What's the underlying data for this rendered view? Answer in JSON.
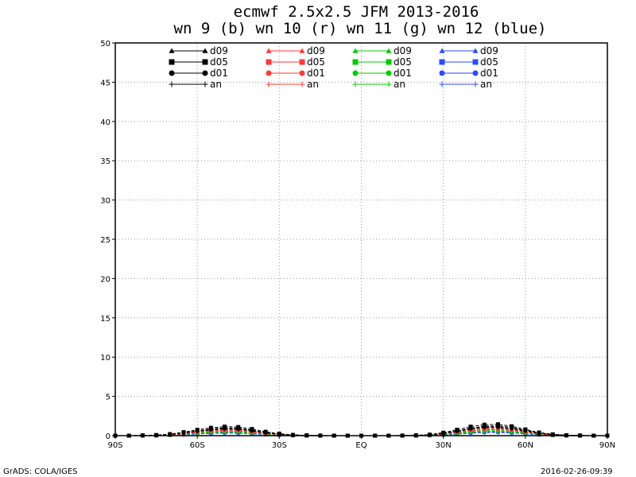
{
  "chart_data": {
    "type": "line",
    "title": "ecmwf 2.5x2.5 JFM 2013-2016",
    "subtitle": "wn 9 (b) wn 10 (r) wn 11 (g) wn 12 (blue)",
    "xlabel": "",
    "ylabel": "",
    "xlim": [
      -90,
      90
    ],
    "ylim": [
      0,
      50
    ],
    "grid": true,
    "legend_position": "top",
    "x_ticks": [
      {
        "value": -90,
        "label": "90S"
      },
      {
        "value": -60,
        "label": "60S"
      },
      {
        "value": -30,
        "label": "30S"
      },
      {
        "value": 0,
        "label": "EQ"
      },
      {
        "value": 30,
        "label": "30N"
      },
      {
        "value": 60,
        "label": "60N"
      },
      {
        "value": 90,
        "label": "90N"
      }
    ],
    "y_ticks": [
      0,
      5,
      10,
      15,
      20,
      25,
      30,
      35,
      40,
      45,
      50
    ],
    "x": [
      -90,
      -85,
      -80,
      -75,
      -70,
      -65,
      -60,
      -55,
      -50,
      -45,
      -40,
      -35,
      -30,
      -25,
      -20,
      -15,
      -10,
      -5,
      0,
      5,
      10,
      15,
      20,
      25,
      30,
      35,
      40,
      45,
      50,
      55,
      60,
      65,
      70,
      75,
      80,
      85,
      90
    ],
    "groups": [
      {
        "name": "wn 9",
        "color": "#000000",
        "series": [
          {
            "name": "d09",
            "marker": "triangle",
            "values": [
              0,
              0,
              0.02,
              0.05,
              0.15,
              0.35,
              0.6,
              0.85,
              1.0,
              0.95,
              0.7,
              0.4,
              0.2,
              0.08,
              0.03,
              0.01,
              0,
              0,
              0,
              0,
              0,
              0.01,
              0.03,
              0.1,
              0.3,
              0.6,
              0.95,
              1.2,
              1.25,
              1.05,
              0.7,
              0.35,
              0.15,
              0.05,
              0.02,
              0,
              0
            ]
          },
          {
            "name": "d05",
            "marker": "square",
            "values": [
              0,
              0,
              0.03,
              0.08,
              0.2,
              0.45,
              0.75,
              1.0,
              1.15,
              1.1,
              0.85,
              0.5,
              0.25,
              0.1,
              0.04,
              0.01,
              0,
              0,
              0,
              0,
              0,
              0.01,
              0.04,
              0.13,
              0.38,
              0.75,
              1.15,
              1.4,
              1.45,
              1.2,
              0.8,
              0.4,
              0.17,
              0.06,
              0.02,
              0,
              0
            ]
          },
          {
            "name": "d01",
            "marker": "circle",
            "values": [
              0,
              0,
              0.02,
              0.06,
              0.16,
              0.36,
              0.6,
              0.8,
              0.9,
              0.85,
              0.65,
              0.38,
              0.19,
              0.08,
              0.03,
              0.01,
              0,
              0,
              0,
              0,
              0,
              0.01,
              0.03,
              0.1,
              0.3,
              0.58,
              0.9,
              1.1,
              1.12,
              0.92,
              0.62,
              0.31,
              0.13,
              0.05,
              0.02,
              0,
              0
            ]
          },
          {
            "name": "an",
            "marker": "plus",
            "values": [
              0,
              0,
              0.02,
              0.05,
              0.14,
              0.32,
              0.55,
              0.74,
              0.84,
              0.8,
              0.6,
              0.35,
              0.18,
              0.07,
              0.03,
              0.01,
              0,
              0,
              0,
              0,
              0,
              0.01,
              0.03,
              0.09,
              0.28,
              0.54,
              0.84,
              1.02,
              1.04,
              0.86,
              0.58,
              0.29,
              0.12,
              0.04,
              0.01,
              0,
              0
            ]
          }
        ]
      },
      {
        "name": "wn 10",
        "color": "#ff3a3a",
        "series": [
          {
            "name": "d09",
            "marker": "triangle",
            "values": [
              0,
              0,
              0.01,
              0.04,
              0.1,
              0.25,
              0.45,
              0.62,
              0.72,
              0.68,
              0.5,
              0.3,
              0.15,
              0.06,
              0.02,
              0,
              0,
              0,
              0,
              0,
              0,
              0,
              0.02,
              0.07,
              0.22,
              0.45,
              0.7,
              0.88,
              0.9,
              0.75,
              0.5,
              0.25,
              0.1,
              0.04,
              0.01,
              0,
              0
            ]
          },
          {
            "name": "d05",
            "marker": "square",
            "values": [
              0,
              0,
              0.02,
              0.05,
              0.14,
              0.32,
              0.55,
              0.75,
              0.85,
              0.8,
              0.6,
              0.35,
              0.18,
              0.07,
              0.03,
              0.01,
              0,
              0,
              0,
              0,
              0,
              0.01,
              0.03,
              0.09,
              0.27,
              0.55,
              0.85,
              1.05,
              1.08,
              0.9,
              0.6,
              0.3,
              0.12,
              0.04,
              0.01,
              0,
              0
            ]
          },
          {
            "name": "d01",
            "marker": "circle",
            "values": [
              0,
              0,
              0.01,
              0.04,
              0.11,
              0.26,
              0.45,
              0.6,
              0.68,
              0.64,
              0.48,
              0.28,
              0.14,
              0.06,
              0.02,
              0,
              0,
              0,
              0,
              0,
              0,
              0,
              0.02,
              0.07,
              0.21,
              0.43,
              0.66,
              0.82,
              0.84,
              0.7,
              0.47,
              0.23,
              0.1,
              0.03,
              0.01,
              0,
              0
            ]
          },
          {
            "name": "an",
            "marker": "plus",
            "values": [
              0,
              0,
              0.01,
              0.04,
              0.1,
              0.24,
              0.42,
              0.56,
              0.64,
              0.6,
              0.45,
              0.26,
              0.13,
              0.05,
              0.02,
              0,
              0,
              0,
              0,
              0,
              0,
              0,
              0.02,
              0.06,
              0.2,
              0.4,
              0.62,
              0.77,
              0.79,
              0.66,
              0.44,
              0.22,
              0.09,
              0.03,
              0.01,
              0,
              0
            ]
          }
        ]
      },
      {
        "name": "wn 11",
        "color": "#00cc00",
        "series": [
          {
            "name": "d09",
            "marker": "triangle",
            "values": [
              0,
              0,
              0.01,
              0.03,
              0.08,
              0.18,
              0.32,
              0.45,
              0.52,
              0.49,
              0.37,
              0.22,
              0.11,
              0.04,
              0.02,
              0,
              0,
              0,
              0,
              0,
              0,
              0,
              0.01,
              0.05,
              0.15,
              0.32,
              0.5,
              0.63,
              0.65,
              0.54,
              0.36,
              0.18,
              0.07,
              0.03,
              0.01,
              0,
              0
            ]
          },
          {
            "name": "d05",
            "marker": "square",
            "values": [
              0,
              0,
              0.01,
              0.04,
              0.1,
              0.23,
              0.4,
              0.55,
              0.62,
              0.58,
              0.44,
              0.26,
              0.13,
              0.05,
              0.02,
              0,
              0,
              0,
              0,
              0,
              0,
              0,
              0.02,
              0.06,
              0.19,
              0.39,
              0.6,
              0.75,
              0.77,
              0.64,
              0.43,
              0.21,
              0.09,
              0.03,
              0.01,
              0,
              0
            ]
          },
          {
            "name": "d01",
            "marker": "circle",
            "values": [
              0,
              0,
              0.01,
              0.03,
              0.08,
              0.18,
              0.31,
              0.43,
              0.49,
              0.46,
              0.35,
              0.2,
              0.1,
              0.04,
              0.02,
              0,
              0,
              0,
              0,
              0,
              0,
              0,
              0.01,
              0.05,
              0.15,
              0.3,
              0.47,
              0.59,
              0.61,
              0.51,
              0.34,
              0.17,
              0.07,
              0.02,
              0.01,
              0,
              0
            ]
          },
          {
            "name": "an",
            "marker": "plus",
            "values": [
              0,
              0,
              0.01,
              0.03,
              0.07,
              0.17,
              0.29,
              0.4,
              0.46,
              0.43,
              0.33,
              0.19,
              0.1,
              0.04,
              0.01,
              0,
              0,
              0,
              0,
              0,
              0,
              0,
              0.01,
              0.05,
              0.14,
              0.28,
              0.44,
              0.55,
              0.57,
              0.47,
              0.32,
              0.16,
              0.06,
              0.02,
              0.01,
              0,
              0
            ]
          }
        ]
      },
      {
        "name": "wn 12",
        "color": "#2a4bff",
        "series": [
          {
            "name": "d09",
            "marker": "triangle",
            "values": [
              0,
              0,
              0.01,
              0.02,
              0.06,
              0.13,
              0.23,
              0.32,
              0.37,
              0.35,
              0.26,
              0.15,
              0.08,
              0.03,
              0.01,
              0,
              0,
              0,
              0,
              0,
              0,
              0,
              0.01,
              0.04,
              0.11,
              0.23,
              0.36,
              0.45,
              0.46,
              0.38,
              0.26,
              0.13,
              0.05,
              0.02,
              0.01,
              0,
              0
            ]
          },
          {
            "name": "d05",
            "marker": "square",
            "values": [
              0,
              0,
              0.01,
              0.03,
              0.07,
              0.16,
              0.28,
              0.38,
              0.44,
              0.41,
              0.31,
              0.18,
              0.09,
              0.04,
              0.01,
              0,
              0,
              0,
              0,
              0,
              0,
              0,
              0.01,
              0.04,
              0.13,
              0.27,
              0.42,
              0.53,
              0.54,
              0.45,
              0.3,
              0.15,
              0.06,
              0.02,
              0.01,
              0,
              0
            ]
          },
          {
            "name": "d01",
            "marker": "circle",
            "values": [
              0,
              0,
              0.01,
              0.02,
              0.06,
              0.13,
              0.22,
              0.3,
              0.35,
              0.33,
              0.25,
              0.14,
              0.07,
              0.03,
              0.01,
              0,
              0,
              0,
              0,
              0,
              0,
              0,
              0.01,
              0.03,
              0.1,
              0.21,
              0.33,
              0.42,
              0.43,
              0.36,
              0.24,
              0.12,
              0.05,
              0.02,
              0,
              0,
              0
            ]
          },
          {
            "name": "an",
            "marker": "plus",
            "values": [
              0,
              0,
              0,
              0.02,
              0.05,
              0.12,
              0.21,
              0.28,
              0.33,
              0.31,
              0.23,
              0.13,
              0.07,
              0.03,
              0.01,
              0,
              0,
              0,
              0,
              0,
              0,
              0,
              0.01,
              0.03,
              0.1,
              0.2,
              0.31,
              0.39,
              0.4,
              0.33,
              0.22,
              0.11,
              0.05,
              0.02,
              0,
              0,
              0
            ]
          }
        ]
      }
    ]
  },
  "footer": {
    "left": "GrADS: COLA/IGES",
    "right": "2016-02-26-09:39"
  }
}
